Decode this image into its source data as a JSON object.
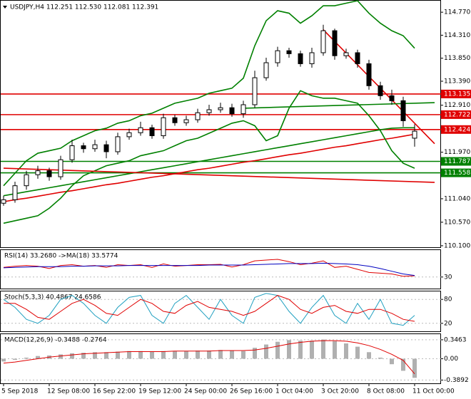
{
  "chart_data": [
    {
      "type": "candlestick",
      "title": "USDJPY,H4  112.251 112.530 112.081 112.391",
      "categories": [
        "5 Sep 2018",
        null,
        null,
        null,
        "12 Sep 08:00",
        null,
        null,
        null,
        "16 Sep 22:00",
        null,
        null,
        null,
        "19 Sep 12:00",
        null,
        null,
        null,
        "24 Sep 00:00",
        null,
        null,
        null,
        "26 Sep 16:00",
        null,
        null,
        null,
        "1 Oct 04:00",
        null,
        null,
        null,
        "3 Oct 20:00",
        null,
        null,
        null,
        "8 Oct 08:00",
        null,
        null,
        null,
        "11 Oct 00:00"
      ],
      "open": [
        110.95,
        111.02,
        111.3,
        111.52,
        111.6,
        111.48,
        111.82,
        112.1,
        112.04,
        112.12,
        111.98,
        112.28,
        112.36,
        112.46,
        112.3,
        112.66,
        112.56,
        112.62,
        112.76,
        112.82,
        112.86,
        112.74,
        112.92,
        113.46,
        113.76,
        114.0,
        113.94,
        113.74,
        113.96,
        114.4,
        113.9,
        113.96,
        113.74,
        113.3,
        113.1,
        113.0,
        112.251
      ],
      "high": [
        111.1,
        111.38,
        111.6,
        111.7,
        111.66,
        111.9,
        112.22,
        112.16,
        112.22,
        112.2,
        112.36,
        112.44,
        112.58,
        112.52,
        112.74,
        112.72,
        112.7,
        112.84,
        112.92,
        112.96,
        112.94,
        113.0,
        113.6,
        113.86,
        114.08,
        114.06,
        114.0,
        114.06,
        114.52,
        114.44,
        114.04,
        114.02,
        113.82,
        113.38,
        113.22,
        113.08,
        112.53
      ],
      "low": [
        110.9,
        110.96,
        111.22,
        111.44,
        111.4,
        111.42,
        111.76,
        111.96,
        111.98,
        111.85,
        111.92,
        112.22,
        112.3,
        112.24,
        112.24,
        112.5,
        112.5,
        112.56,
        112.7,
        112.76,
        112.68,
        112.66,
        112.86,
        113.4,
        113.68,
        113.86,
        113.68,
        113.66,
        113.9,
        113.82,
        113.84,
        113.66,
        113.22,
        113.02,
        112.92,
        112.48,
        112.081
      ],
      "close": [
        111.02,
        111.3,
        111.52,
        111.6,
        111.48,
        111.82,
        112.1,
        112.04,
        112.12,
        111.98,
        112.28,
        112.36,
        112.46,
        112.3,
        112.66,
        112.56,
        112.62,
        112.76,
        112.82,
        112.86,
        112.74,
        112.92,
        113.46,
        113.76,
        114.0,
        113.94,
        113.74,
        113.96,
        114.4,
        113.9,
        113.96,
        113.74,
        113.3,
        113.1,
        113.0,
        112.6,
        112.391
      ],
      "lines": [
        {
          "color": "#e00000",
          "values": [
            110.98,
            111.02,
            111.05,
            111.09,
            111.13,
            111.17,
            111.2,
            111.24,
            111.28,
            111.32,
            111.35,
            111.39,
            111.43,
            111.47,
            111.5,
            111.54,
            111.58,
            111.62,
            111.65,
            111.69,
            111.73,
            111.77,
            111.8,
            111.84,
            111.88,
            111.92,
            111.95,
            111.99,
            112.03,
            112.07,
            112.1,
            112.14,
            112.18,
            112.22,
            112.25,
            112.29,
            112.33
          ]
        },
        {
          "color": "#008000",
          "values": [
            111.1,
            111.14,
            111.18,
            111.22,
            111.26,
            111.3,
            111.34,
            111.38,
            111.42,
            111.46,
            111.5,
            111.54,
            111.58,
            111.62,
            111.66,
            111.7,
            111.74,
            111.78,
            111.82,
            111.86,
            111.9,
            111.94,
            111.98,
            112.02,
            112.06,
            112.1,
            112.14,
            112.18,
            112.22,
            112.26,
            112.3,
            112.34,
            112.38,
            112.42,
            112.45,
            112.46,
            112.46
          ]
        },
        {
          "color": "#008000",
          "values": [
            111.3,
            111.55,
            111.8,
            111.95,
            112.0,
            112.05,
            112.2,
            112.3,
            112.4,
            112.45,
            112.55,
            112.6,
            112.7,
            112.75,
            112.85,
            112.95,
            113.0,
            113.05,
            113.15,
            113.2,
            113.25,
            113.45,
            114.1,
            114.6,
            114.8,
            114.75,
            114.55,
            114.7,
            114.9,
            114.9,
            114.95,
            115.0,
            114.75,
            114.55,
            114.4,
            114.3,
            114.05
          ]
        },
        {
          "color": "#008000",
          "values": [
            110.55,
            110.6,
            110.65,
            110.7,
            110.85,
            111.05,
            111.3,
            111.5,
            111.6,
            111.7,
            111.75,
            111.8,
            111.9,
            111.95,
            112.0,
            112.1,
            112.2,
            112.25,
            112.35,
            112.45,
            112.55,
            112.6,
            112.5,
            112.2,
            112.3,
            112.85,
            113.2,
            113.1,
            113.05,
            113.05,
            113.0,
            112.95,
            112.7,
            112.4,
            112.0,
            111.75,
            111.65
          ]
        }
      ],
      "trendlines": [
        {
          "color": "#e00000",
          "x": [
            28,
            36
          ],
          "values": [
            114.42,
            112.55
          ]
        },
        {
          "color": "#e00000",
          "x": [
            0,
            36
          ],
          "values": [
            111.65,
            111.38
          ]
        },
        {
          "color": "#008000",
          "x": [
            21,
            36
          ],
          "values": [
            112.85,
            112.95
          ]
        }
      ],
      "levels": [
        {
          "value": 113.135,
          "label": "113.135",
          "color": "#e00000"
        },
        {
          "value": 112.722,
          "label": "112.722",
          "color": "#e00000"
        },
        {
          "value": 112.424,
          "label": "112.424",
          "color": "#e00000"
        },
        {
          "value": 111.787,
          "label": "111.787",
          "color": "#008000"
        },
        {
          "value": 111.558,
          "label": "111.558",
          "color": "#008000"
        }
      ],
      "ylim": [
        110.07,
        115.0
      ],
      "yticks": [
        {
          "value": 114.77,
          "label": "114.770"
        },
        {
          "value": 114.31,
          "label": "114.310"
        },
        {
          "value": 113.85,
          "label": "113.850"
        },
        {
          "value": 113.39,
          "label": "113.390"
        },
        {
          "value": 112.91,
          "label": "112.910"
        },
        {
          "value": 111.97,
          "label": "111.970"
        },
        {
          "value": 111.04,
          "label": "111.040"
        },
        {
          "value": 110.57,
          "label": "110.570"
        },
        {
          "value": 110.1,
          "label": "110.100"
        }
      ]
    },
    {
      "type": "line",
      "title": "RSI(14) 33.2680 ->MA(18) 33.5774",
      "lines": [
        {
          "color": "#e00000",
          "values": [
            55,
            58,
            60,
            58,
            52,
            60,
            62,
            58,
            60,
            55,
            62,
            60,
            62,
            55,
            64,
            58,
            60,
            62,
            62,
            63,
            56,
            62,
            72,
            74,
            76,
            70,
            62,
            66,
            72,
            55,
            58,
            50,
            42,
            40,
            38,
            32,
            33
          ]
        },
        {
          "color": "#0000c0",
          "values": [
            54,
            55,
            56,
            57,
            57,
            57,
            58,
            58,
            59,
            59,
            59,
            60,
            60,
            60,
            60,
            60,
            60,
            60,
            61,
            61,
            61,
            61,
            62,
            63,
            64,
            65,
            65,
            65,
            66,
            65,
            64,
            62,
            58,
            52,
            45,
            38,
            34
          ]
        }
      ],
      "ylim": [
        0,
        100
      ],
      "yticks": [
        30
      ]
    },
    {
      "type": "line",
      "title": "Stoch(5,3,3) 40.4867 24.6586",
      "lines": [
        {
          "color": "#20a0c0",
          "values": [
            80,
            60,
            30,
            20,
            40,
            80,
            90,
            70,
            40,
            20,
            60,
            85,
            90,
            40,
            20,
            70,
            90,
            60,
            30,
            80,
            40,
            20,
            85,
            95,
            90,
            50,
            20,
            60,
            90,
            40,
            20,
            70,
            30,
            80,
            20,
            15,
            40
          ]
        },
        {
          "color": "#e00000",
          "values": [
            70,
            70,
            55,
            35,
            30,
            50,
            70,
            80,
            65,
            45,
            40,
            60,
            80,
            70,
            50,
            45,
            65,
            75,
            60,
            55,
            50,
            40,
            50,
            70,
            90,
            80,
            55,
            45,
            60,
            65,
            50,
            45,
            55,
            55,
            45,
            30,
            25
          ]
        }
      ],
      "ylim": [
        0,
        100
      ],
      "yticks": [
        20,
        80
      ]
    },
    {
      "type": "macd",
      "title": "MACD(12,26,9) -0.3488 -0.2764",
      "histogram": {
        "color": "#b0b0b0",
        "values": [
          -0.05,
          -0.02,
          0.02,
          0.05,
          0.06,
          0.08,
          0.1,
          0.11,
          0.12,
          0.12,
          0.13,
          0.14,
          0.14,
          0.13,
          0.14,
          0.14,
          0.14,
          0.15,
          0.15,
          0.16,
          0.15,
          0.14,
          0.2,
          0.26,
          0.31,
          0.34,
          0.33,
          0.33,
          0.35,
          0.32,
          0.28,
          0.22,
          0.12,
          0.02,
          -0.1,
          -0.22,
          -0.3488
        ]
      },
      "lines": [
        {
          "color": "#e00000",
          "values": [
            -0.08,
            -0.06,
            -0.03,
            0.0,
            0.03,
            0.05,
            0.07,
            0.09,
            0.1,
            0.11,
            0.12,
            0.13,
            0.13,
            0.13,
            0.13,
            0.14,
            0.14,
            0.14,
            0.14,
            0.15,
            0.15,
            0.15,
            0.16,
            0.19,
            0.23,
            0.27,
            0.3,
            0.32,
            0.33,
            0.33,
            0.32,
            0.29,
            0.24,
            0.17,
            0.08,
            -0.03,
            -0.2764
          ]
        }
      ],
      "ylim": [
        -0.449,
        0.449
      ],
      "yticks": [
        0.3463,
        {
          "value": 0,
          "label": "0.00"
        },
        -0.3892
      ]
    }
  ]
}
